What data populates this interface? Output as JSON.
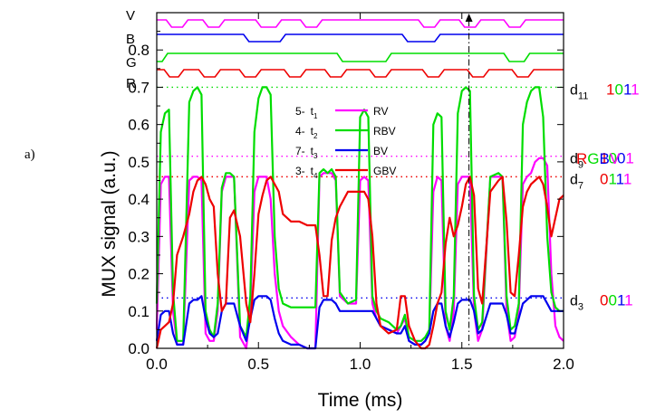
{
  "panel_label": "a)",
  "chart_data": {
    "type": "line",
    "xlabel": "Time (ms)",
    "ylabel": "MUX signal (a.u.)",
    "xlim": [
      0,
      2.0
    ],
    "ylim": [
      0,
      0.9
    ],
    "x_ticks": [
      0.0,
      0.5,
      1.0,
      1.5,
      2.0
    ],
    "x_tick_labels": [
      "0.0",
      "0.5",
      "1.0",
      "1.5",
      "2.0"
    ],
    "y_ticks": [
      0.0,
      0.1,
      0.2,
      0.3,
      0.4,
      0.5,
      0.6,
      0.7,
      0.8
    ],
    "y_tick_labels": [
      "0.0",
      "0.1",
      "0.2",
      "0.3",
      "0.4",
      "0.5",
      "0.6",
      "0.7",
      "0.8"
    ],
    "marker_x": 1.535,
    "logic_lanes": [
      {
        "label": "V",
        "color": "#ff00ff",
        "segments": [
          [
            0.0,
            0.06,
            1
          ],
          [
            0.06,
            0.14,
            0
          ],
          [
            0.14,
            0.24,
            1
          ],
          [
            0.24,
            0.32,
            0
          ],
          [
            0.32,
            0.5,
            1
          ],
          [
            0.5,
            0.6,
            0
          ],
          [
            0.6,
            0.72,
            1
          ],
          [
            0.72,
            0.8,
            0
          ],
          [
            0.8,
            1.3,
            1
          ],
          [
            1.3,
            1.38,
            0
          ],
          [
            1.38,
            1.5,
            1
          ],
          [
            1.5,
            1.58,
            0
          ],
          [
            1.58,
            1.72,
            1
          ],
          [
            1.72,
            1.8,
            0
          ],
          [
            1.8,
            2.0,
            1
          ]
        ]
      },
      {
        "label": "B",
        "color": "#0000ee",
        "segments": [
          [
            0.0,
            0.44,
            1
          ],
          [
            0.44,
            0.62,
            0
          ],
          [
            0.62,
            1.22,
            1
          ],
          [
            1.22,
            1.38,
            0
          ],
          [
            1.38,
            2.0,
            1
          ]
        ]
      },
      {
        "label": "G",
        "color": "#00dd00",
        "segments": [
          [
            0.0,
            0.04,
            0
          ],
          [
            0.04,
            0.9,
            1
          ],
          [
            0.9,
            1.14,
            0
          ],
          [
            1.14,
            1.72,
            1
          ],
          [
            1.72,
            1.82,
            0
          ],
          [
            1.82,
            2.0,
            1
          ]
        ]
      },
      {
        "label": "R",
        "color": "#ee0000",
        "segments": [
          [
            0.0,
            0.05,
            1
          ],
          [
            0.05,
            0.12,
            0
          ],
          [
            0.12,
            0.22,
            1
          ],
          [
            0.22,
            0.3,
            0
          ],
          [
            0.3,
            0.42,
            1
          ],
          [
            0.42,
            0.5,
            0
          ],
          [
            0.5,
            0.64,
            1
          ],
          [
            0.64,
            0.72,
            0
          ],
          [
            0.72,
            0.84,
            1
          ],
          [
            0.84,
            0.92,
            0
          ],
          [
            0.92,
            1.06,
            1
          ],
          [
            1.06,
            1.14,
            0
          ],
          [
            1.14,
            1.32,
            1
          ],
          [
            1.32,
            1.4,
            0
          ],
          [
            1.4,
            1.54,
            1
          ],
          [
            1.54,
            1.62,
            0
          ],
          [
            1.62,
            1.76,
            1
          ],
          [
            1.76,
            1.84,
            0
          ],
          [
            1.84,
            2.0,
            1
          ]
        ]
      }
    ],
    "legend": [
      {
        "prefix": "5-",
        "sym": "t",
        "sub": "1",
        "name": "RV",
        "color": "#ff00ff"
      },
      {
        "prefix": "4-",
        "sym": "t",
        "sub": "2",
        "name": "RBV",
        "color": "#00dd00"
      },
      {
        "prefix": "7-",
        "sym": "t",
        "sub": "3",
        "name": "BV",
        "color": "#0000ee"
      },
      {
        "prefix": "3-",
        "sym": "t",
        "sub": "4",
        "name": "GBV",
        "color": "#ee0000"
      }
    ],
    "levels": [
      {
        "sym": "d",
        "sub": "11",
        "y": 0.7,
        "color": "#00dd00",
        "code": [
          {
            "ch": "1",
            "color": "#ee0000"
          },
          {
            "ch": "0",
            "color": "#00dd00"
          },
          {
            "ch": "1",
            "color": "#0000ee"
          },
          {
            "ch": "1",
            "color": "#ff00ff"
          }
        ]
      },
      {
        "sym": "d",
        "sub": "9",
        "y": 0.515,
        "color": "#ff00ff",
        "code": [
          {
            "ch": "1",
            "color": "#ee0000"
          },
          {
            "ch": "0",
            "color": "#00dd00"
          },
          {
            "ch": "0",
            "color": "#0000ee"
          },
          {
            "ch": "1",
            "color": "#ff00ff"
          }
        ]
      },
      {
        "sym": "d",
        "sub": "7",
        "y": 0.46,
        "color": "#ee0000",
        "code": [
          {
            "ch": "0",
            "color": "#ee0000"
          },
          {
            "ch": "1",
            "color": "#00dd00"
          },
          {
            "ch": "1",
            "color": "#0000ee"
          },
          {
            "ch": "1",
            "color": "#ff00ff"
          }
        ]
      },
      {
        "sym": "d",
        "sub": "3",
        "y": 0.135,
        "color": "#0000ee",
        "code": [
          {
            "ch": "0",
            "color": "#ee0000"
          },
          {
            "ch": "0",
            "color": "#00dd00"
          },
          {
            "ch": "1",
            "color": "#0000ee"
          },
          {
            "ch": "1",
            "color": "#ff00ff"
          }
        ]
      }
    ],
    "code_header": [
      {
        "ch": "R",
        "color": "#ee0000"
      },
      {
        "ch": "G",
        "color": "#00dd00"
      },
      {
        "ch": "B",
        "color": "#0000ee"
      },
      {
        "ch": "V",
        "color": "#ff00ff"
      }
    ],
    "series": [
      {
        "name": "RV",
        "color": "#ff00ff",
        "x": [
          0.0,
          0.02,
          0.04,
          0.06,
          0.08,
          0.1,
          0.13,
          0.16,
          0.18,
          0.2,
          0.22,
          0.24,
          0.26,
          0.28,
          0.3,
          0.32,
          0.34,
          0.36,
          0.38,
          0.41,
          0.44,
          0.46,
          0.48,
          0.5,
          0.52,
          0.54,
          0.56,
          0.58,
          0.6,
          0.62,
          0.66,
          0.7,
          0.74,
          0.78,
          0.8,
          0.82,
          0.84,
          0.86,
          0.88,
          0.9,
          0.94,
          0.98,
          1.0,
          1.02,
          1.04,
          1.06,
          1.08,
          1.1,
          1.14,
          1.18,
          1.2,
          1.22,
          1.24,
          1.27,
          1.3,
          1.32,
          1.34,
          1.36,
          1.38,
          1.4,
          1.42,
          1.44,
          1.46,
          1.48,
          1.5,
          1.52,
          1.54,
          1.56,
          1.58,
          1.6,
          1.64,
          1.68,
          1.7,
          1.72,
          1.74,
          1.76,
          1.78,
          1.8,
          1.82,
          1.84,
          1.86,
          1.88,
          1.9,
          1.92,
          1.94,
          1.96,
          1.98,
          2.0
        ],
        "y": [
          0.05,
          0.44,
          0.46,
          0.46,
          0.1,
          0.01,
          0.01,
          0.45,
          0.46,
          0.46,
          0.45,
          0.04,
          0.02,
          0.02,
          0.1,
          0.42,
          0.46,
          0.46,
          0.46,
          0.03,
          0.0,
          0.1,
          0.42,
          0.46,
          0.46,
          0.46,
          0.4,
          0.2,
          0.1,
          0.06,
          0.03,
          0.01,
          0.0,
          0.0,
          0.46,
          0.47,
          0.47,
          0.47,
          0.45,
          0.14,
          0.12,
          0.12,
          0.45,
          0.46,
          0.45,
          0.12,
          0.08,
          0.06,
          0.05,
          0.04,
          0.06,
          0.08,
          0.02,
          0.01,
          0.01,
          0.02,
          0.04,
          0.42,
          0.46,
          0.45,
          0.06,
          0.02,
          0.1,
          0.44,
          0.46,
          0.46,
          0.46,
          0.1,
          0.02,
          0.05,
          0.46,
          0.46,
          0.46,
          0.1,
          0.02,
          0.03,
          0.1,
          0.44,
          0.46,
          0.47,
          0.5,
          0.51,
          0.51,
          0.49,
          0.2,
          0.06,
          0.03,
          0.02
        ]
      },
      {
        "name": "RBV",
        "color": "#00dd00",
        "x": [
          0.0,
          0.02,
          0.04,
          0.06,
          0.08,
          0.1,
          0.13,
          0.16,
          0.18,
          0.2,
          0.22,
          0.24,
          0.26,
          0.28,
          0.3,
          0.32,
          0.34,
          0.36,
          0.38,
          0.41,
          0.44,
          0.46,
          0.48,
          0.5,
          0.52,
          0.54,
          0.56,
          0.58,
          0.6,
          0.62,
          0.66,
          0.7,
          0.74,
          0.78,
          0.8,
          0.82,
          0.84,
          0.86,
          0.88,
          0.9,
          0.94,
          0.98,
          1.0,
          1.02,
          1.04,
          1.06,
          1.08,
          1.1,
          1.14,
          1.18,
          1.2,
          1.22,
          1.24,
          1.27,
          1.3,
          1.32,
          1.34,
          1.36,
          1.38,
          1.4,
          1.42,
          1.44,
          1.46,
          1.48,
          1.5,
          1.52,
          1.54,
          1.56,
          1.58,
          1.6,
          1.64,
          1.68,
          1.7,
          1.72,
          1.74,
          1.76,
          1.78,
          1.8,
          1.82,
          1.84,
          1.86,
          1.88,
          1.9,
          1.92,
          1.94,
          1.96,
          1.98,
          2.0
        ],
        "y": [
          0.12,
          0.58,
          0.63,
          0.64,
          0.15,
          0.02,
          0.02,
          0.66,
          0.69,
          0.7,
          0.68,
          0.1,
          0.05,
          0.03,
          0.12,
          0.43,
          0.47,
          0.47,
          0.46,
          0.06,
          0.03,
          0.14,
          0.58,
          0.67,
          0.7,
          0.7,
          0.68,
          0.3,
          0.16,
          0.12,
          0.11,
          0.11,
          0.11,
          0.11,
          0.47,
          0.48,
          0.47,
          0.48,
          0.46,
          0.15,
          0.12,
          0.13,
          0.62,
          0.64,
          0.62,
          0.14,
          0.1,
          0.08,
          0.07,
          0.05,
          0.06,
          0.09,
          0.03,
          0.02,
          0.02,
          0.03,
          0.05,
          0.6,
          0.63,
          0.62,
          0.1,
          0.05,
          0.14,
          0.63,
          0.69,
          0.7,
          0.69,
          0.14,
          0.05,
          0.07,
          0.46,
          0.47,
          0.46,
          0.14,
          0.05,
          0.06,
          0.12,
          0.6,
          0.66,
          0.69,
          0.7,
          0.7,
          0.62,
          0.3,
          0.15,
          0.11,
          0.1,
          0.1
        ]
      },
      {
        "name": "BV",
        "color": "#0000ee",
        "x": [
          0.0,
          0.02,
          0.04,
          0.06,
          0.08,
          0.1,
          0.13,
          0.16,
          0.18,
          0.2,
          0.22,
          0.24,
          0.26,
          0.28,
          0.3,
          0.32,
          0.34,
          0.36,
          0.38,
          0.41,
          0.44,
          0.46,
          0.48,
          0.5,
          0.52,
          0.54,
          0.56,
          0.58,
          0.6,
          0.62,
          0.66,
          0.7,
          0.74,
          0.78,
          0.8,
          0.82,
          0.84,
          0.86,
          0.88,
          0.9,
          0.94,
          0.98,
          1.0,
          1.02,
          1.04,
          1.06,
          1.08,
          1.1,
          1.14,
          1.18,
          1.2,
          1.22,
          1.24,
          1.27,
          1.3,
          1.32,
          1.34,
          1.36,
          1.38,
          1.4,
          1.42,
          1.44,
          1.46,
          1.48,
          1.5,
          1.52,
          1.54,
          1.56,
          1.58,
          1.6,
          1.64,
          1.68,
          1.7,
          1.72,
          1.74,
          1.76,
          1.78,
          1.8,
          1.82,
          1.84,
          1.86,
          1.88,
          1.9,
          1.92,
          1.94,
          1.96,
          1.98,
          2.0
        ],
        "y": [
          0.02,
          0.09,
          0.1,
          0.1,
          0.04,
          0.01,
          0.01,
          0.12,
          0.13,
          0.13,
          0.14,
          0.08,
          0.04,
          0.03,
          0.04,
          0.1,
          0.12,
          0.12,
          0.12,
          0.06,
          0.02,
          0.08,
          0.13,
          0.14,
          0.14,
          0.14,
          0.13,
          0.08,
          0.04,
          0.02,
          0.01,
          0.01,
          0.0,
          0.0,
          0.11,
          0.13,
          0.13,
          0.13,
          0.12,
          0.1,
          0.1,
          0.1,
          0.1,
          0.1,
          0.1,
          0.1,
          0.08,
          0.06,
          0.05,
          0.04,
          0.04,
          0.06,
          0.02,
          0.01,
          0.01,
          0.02,
          0.04,
          0.1,
          0.12,
          0.12,
          0.06,
          0.03,
          0.07,
          0.12,
          0.13,
          0.13,
          0.13,
          0.1,
          0.04,
          0.05,
          0.12,
          0.12,
          0.12,
          0.09,
          0.04,
          0.04,
          0.08,
          0.12,
          0.13,
          0.14,
          0.14,
          0.14,
          0.14,
          0.12,
          0.1,
          0.1,
          0.1,
          0.1
        ]
      },
      {
        "name": "GBV",
        "color": "#ee0000",
        "x": [
          0.0,
          0.02,
          0.04,
          0.06,
          0.08,
          0.1,
          0.13,
          0.16,
          0.18,
          0.2,
          0.22,
          0.24,
          0.26,
          0.28,
          0.3,
          0.32,
          0.34,
          0.36,
          0.38,
          0.41,
          0.44,
          0.46,
          0.48,
          0.5,
          0.52,
          0.54,
          0.56,
          0.58,
          0.6,
          0.62,
          0.66,
          0.7,
          0.74,
          0.78,
          0.8,
          0.82,
          0.84,
          0.86,
          0.88,
          0.9,
          0.94,
          0.98,
          1.0,
          1.02,
          1.04,
          1.06,
          1.08,
          1.1,
          1.14,
          1.18,
          1.2,
          1.22,
          1.24,
          1.27,
          1.3,
          1.32,
          1.34,
          1.36,
          1.38,
          1.4,
          1.42,
          1.44,
          1.46,
          1.48,
          1.5,
          1.52,
          1.54,
          1.56,
          1.58,
          1.6,
          1.64,
          1.68,
          1.7,
          1.72,
          1.74,
          1.76,
          1.78,
          1.8,
          1.82,
          1.84,
          1.86,
          1.88,
          1.9,
          1.92,
          1.94,
          1.96,
          1.98,
          2.0
        ],
        "y": [
          0.0,
          0.05,
          0.06,
          0.07,
          0.12,
          0.25,
          0.3,
          0.36,
          0.42,
          0.45,
          0.46,
          0.44,
          0.4,
          0.38,
          0.2,
          0.1,
          0.12,
          0.35,
          0.37,
          0.3,
          0.12,
          0.07,
          0.2,
          0.36,
          0.41,
          0.45,
          0.46,
          0.44,
          0.42,
          0.36,
          0.34,
          0.34,
          0.33,
          0.33,
          0.25,
          0.14,
          0.14,
          0.29,
          0.35,
          0.38,
          0.42,
          0.42,
          0.42,
          0.42,
          0.4,
          0.3,
          0.12,
          0.06,
          0.04,
          0.05,
          0.14,
          0.14,
          0.06,
          0.02,
          0.0,
          0.0,
          0.01,
          0.06,
          0.12,
          0.15,
          0.28,
          0.35,
          0.3,
          0.33,
          0.38,
          0.44,
          0.46,
          0.41,
          0.16,
          0.12,
          0.42,
          0.45,
          0.46,
          0.34,
          0.15,
          0.14,
          0.25,
          0.38,
          0.42,
          0.44,
          0.45,
          0.46,
          0.44,
          0.38,
          0.3,
          0.35,
          0.4,
          0.41
        ]
      }
    ]
  }
}
